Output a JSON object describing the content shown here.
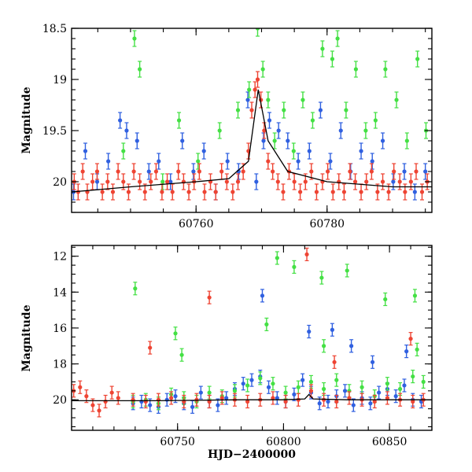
{
  "chart_data": [
    {
      "id": "top-panel",
      "type": "scatter",
      "ylabel": "Magnitude",
      "xlabel": "",
      "xlim": [
        60741,
        60796
      ],
      "ylim": [
        20.3,
        18.5
      ],
      "y_inverted": true,
      "x_ticks": [
        60760,
        60780
      ],
      "x_tick_labels": [
        "60760",
        "60780"
      ],
      "y_ticks": [
        18.5,
        19,
        19.5,
        20
      ],
      "y_tick_labels": [
        "18.5",
        "19",
        "19.5",
        "20"
      ],
      "grid": false,
      "error_bars": true,
      "series": [
        {
          "color": "#3060e0",
          "x": [
            60741.3,
            60743.1,
            60744.9,
            60746.6,
            60748.4,
            60749.4,
            60751.0,
            60752.8,
            60754.3,
            60756.1,
            60757.9,
            60759.6,
            60761.2,
            60763.0,
            60764.8,
            60766.5,
            60767.9,
            60769.2,
            60770.3,
            60771.2,
            60772.6,
            60774.0,
            60775.6,
            60777.3,
            60779.0,
            60780.5,
            60782.1,
            60783.6,
            60785.2,
            60786.9,
            60788.5,
            60790.1,
            60791.8,
            60793.4,
            60795.0
          ],
          "y": [
            20.1,
            19.7,
            20.0,
            19.8,
            19.4,
            19.5,
            19.6,
            19.9,
            19.8,
            20.0,
            19.6,
            19.9,
            19.7,
            20.1,
            19.8,
            19.9,
            19.2,
            20.0,
            19.6,
            19.4,
            19.5,
            19.6,
            19.8,
            19.7,
            19.3,
            19.8,
            19.5,
            19.9,
            19.7,
            19.8,
            19.6,
            20.0,
            19.9,
            20.1,
            19.9
          ]
        },
        {
          "color": "#44e044",
          "x": [
            60748.9,
            60750.6,
            60751.4,
            60754.9,
            60757.4,
            60760.3,
            60763.6,
            60766.4,
            60768.1,
            60769.4,
            60770.2,
            60771.0,
            60772.0,
            60773.4,
            60774.9,
            60776.3,
            60777.8,
            60779.3,
            60780.8,
            60781.6,
            60782.9,
            60784.4,
            60785.9,
            60787.4,
            60788.9,
            60790.6,
            60792.2,
            60793.8,
            60795.1
          ],
          "y": [
            19.7,
            18.6,
            18.9,
            20.0,
            19.4,
            19.8,
            19.5,
            19.3,
            19.1,
            18.5,
            18.9,
            19.2,
            19.6,
            19.3,
            19.7,
            19.2,
            19.4,
            18.7,
            18.8,
            18.6,
            19.3,
            18.9,
            19.5,
            19.4,
            18.9,
            19.2,
            19.6,
            18.8,
            19.5
          ]
        },
        {
          "color": "#ee4433",
          "x": [
            60741.4,
            60742.0,
            60742.7,
            60743.4,
            60744.2,
            60744.9,
            60745.7,
            60746.5,
            60747.3,
            60748.1,
            60748.9,
            60749.7,
            60750.5,
            60751.4,
            60752.2,
            60753.1,
            60753.9,
            60754.8,
            60755.6,
            60756.4,
            60757.3,
            60758.1,
            60758.9,
            60759.7,
            60760.5,
            60761.3,
            60762.2,
            60763.0,
            60763.9,
            60764.7,
            60765.6,
            60766.4,
            60767.2,
            60768.0,
            60768.5,
            60769.0,
            60769.4,
            60769.9,
            60770.4,
            60771.0,
            60771.7,
            60772.5,
            60773.3,
            60774.2,
            60775.0,
            60775.9,
            60776.7,
            60777.6,
            60778.4,
            60779.3,
            60780.1,
            60780.9,
            60781.8,
            60782.6,
            60783.5,
            60784.3,
            60785.2,
            60786.0,
            60786.8,
            60787.7,
            60788.5,
            60789.4,
            60790.2,
            60791.1,
            60791.9,
            60792.8,
            60793.6,
            60794.5,
            60795.3
          ],
          "y": [
            20.0,
            20.1,
            19.9,
            20.1,
            20.0,
            19.9,
            20.1,
            20.0,
            20.1,
            19.9,
            20.0,
            20.1,
            19.9,
            20.0,
            20.1,
            20.0,
            19.9,
            20.1,
            20.0,
            20.1,
            19.9,
            20.0,
            20.1,
            20.0,
            19.9,
            20.1,
            20.0,
            20.1,
            19.9,
            20.0,
            20.1,
            20.0,
            19.9,
            19.7,
            19.3,
            19.1,
            19.0,
            19.2,
            19.5,
            19.8,
            19.9,
            20.0,
            20.1,
            19.9,
            20.0,
            20.1,
            20.0,
            19.9,
            20.1,
            20.0,
            19.9,
            20.1,
            20.0,
            20.1,
            19.9,
            20.0,
            20.1,
            20.0,
            19.9,
            20.1,
            20.0,
            20.1,
            19.9,
            20.0,
            20.1,
            20.0,
            19.9,
            20.1,
            20.0
          ]
        }
      ],
      "model": {
        "x": [
          60741,
          60750,
          60760,
          60765,
          60768,
          60769.5,
          60771,
          60774,
          60780,
          60790,
          60796
        ],
        "y": [
          20.1,
          20.05,
          20.0,
          19.97,
          19.8,
          19.1,
          19.6,
          19.9,
          20.0,
          20.05,
          20.05
        ]
      }
    },
    {
      "id": "bottom-panel",
      "type": "scatter",
      "ylabel": "Magnitude",
      "xlabel": "HJD−2400000",
      "xlim": [
        60700,
        60870
      ],
      "ylim": [
        21.7,
        11.4
      ],
      "y_inverted": true,
      "x_ticks": [
        60750,
        60800,
        60850
      ],
      "x_tick_labels": [
        "60750",
        "60800",
        "60850"
      ],
      "y_ticks": [
        12,
        14,
        16,
        18,
        20
      ],
      "y_tick_labels": [
        "12",
        "14",
        "16",
        "18",
        "20"
      ],
      "grid": false,
      "error_bars": true,
      "series": [
        {
          "color": "#3060e0",
          "x": [
            60729,
            60733,
            60737,
            60741,
            60745,
            60749,
            60753,
            60757,
            60761,
            60765,
            60769,
            60773,
            60777,
            60781,
            60785,
            60789,
            60793,
            60797,
            60801,
            60805,
            60809,
            60813,
            60817,
            60821,
            60825,
            60829,
            60833,
            60837,
            60841,
            60845,
            60849,
            60853,
            60857,
            60861,
            60865,
            60790,
            60812,
            60823,
            60832,
            60842,
            60858
          ],
          "y": [
            20.2,
            20.1,
            20.3,
            20.4,
            20.0,
            19.8,
            20.2,
            20.4,
            19.6,
            20.1,
            20.3,
            19.9,
            19.4,
            19.1,
            18.9,
            18.7,
            19.3,
            19.9,
            20.1,
            19.7,
            18.9,
            19.6,
            20.2,
            20.1,
            19.8,
            19.5,
            20.3,
            19.9,
            20.2,
            19.6,
            19.4,
            19.8,
            19.2,
            20.0,
            20.1,
            14.2,
            16.2,
            16.1,
            17.0,
            17.9,
            17.3
          ]
        },
        {
          "color": "#44e044",
          "x": [
            60729,
            60735,
            60741,
            60747,
            60753,
            60759,
            60765,
            60771,
            60777,
            60783,
            60789,
            60795,
            60801,
            60807,
            60813,
            60819,
            60825,
            60831,
            60837,
            60843,
            60849,
            60855,
            60861,
            60866,
            60730,
            60749,
            60752,
            60792,
            60797,
            60805,
            60818,
            60819,
            60830,
            60848,
            60862,
            60863
          ],
          "y": [
            20.1,
            20.0,
            20.2,
            19.7,
            19.9,
            20.1,
            19.6,
            19.8,
            19.5,
            19.2,
            18.8,
            19.1,
            19.6,
            19.3,
            19.0,
            19.4,
            18.9,
            19.5,
            19.3,
            19.8,
            19.1,
            19.4,
            18.7,
            19.0,
            13.8,
            16.3,
            17.5,
            15.8,
            12.1,
            12.6,
            13.2,
            17.0,
            12.8,
            14.4,
            14.2,
            17.2
          ]
        },
        {
          "color": "#ee4433",
          "x": [
            60701,
            60704,
            60707,
            60710,
            60713,
            60716,
            60719,
            60722,
            60729,
            60735,
            60741,
            60747,
            60753,
            60759,
            60765,
            60771,
            60777,
            60783,
            60789,
            60795,
            60801,
            60807,
            60813,
            60819,
            60825,
            60831,
            60837,
            60843,
            60849,
            60855,
            60861,
            60866,
            60737,
            60765,
            60811,
            60824,
            60860
          ],
          "y": [
            19.5,
            19.3,
            19.8,
            20.3,
            20.6,
            20.1,
            19.6,
            19.9,
            20.0,
            20.1,
            20.0,
            19.9,
            20.1,
            20.0,
            20.1,
            19.9,
            20.0,
            20.1,
            20.0,
            19.9,
            20.1,
            20.0,
            19.5,
            20.0,
            20.1,
            19.9,
            20.0,
            20.1,
            19.9,
            20.0,
            20.1,
            20.0,
            17.1,
            14.3,
            11.9,
            17.9,
            16.6
          ]
        }
      ],
      "model": {
        "x": [
          60700,
          60740,
          60780,
          60800,
          60810,
          60812,
          60814,
          60830,
          60870
        ],
        "y": [
          20.05,
          20.05,
          20.0,
          20.0,
          19.95,
          19.7,
          19.95,
          20.0,
          20.0
        ]
      }
    }
  ]
}
